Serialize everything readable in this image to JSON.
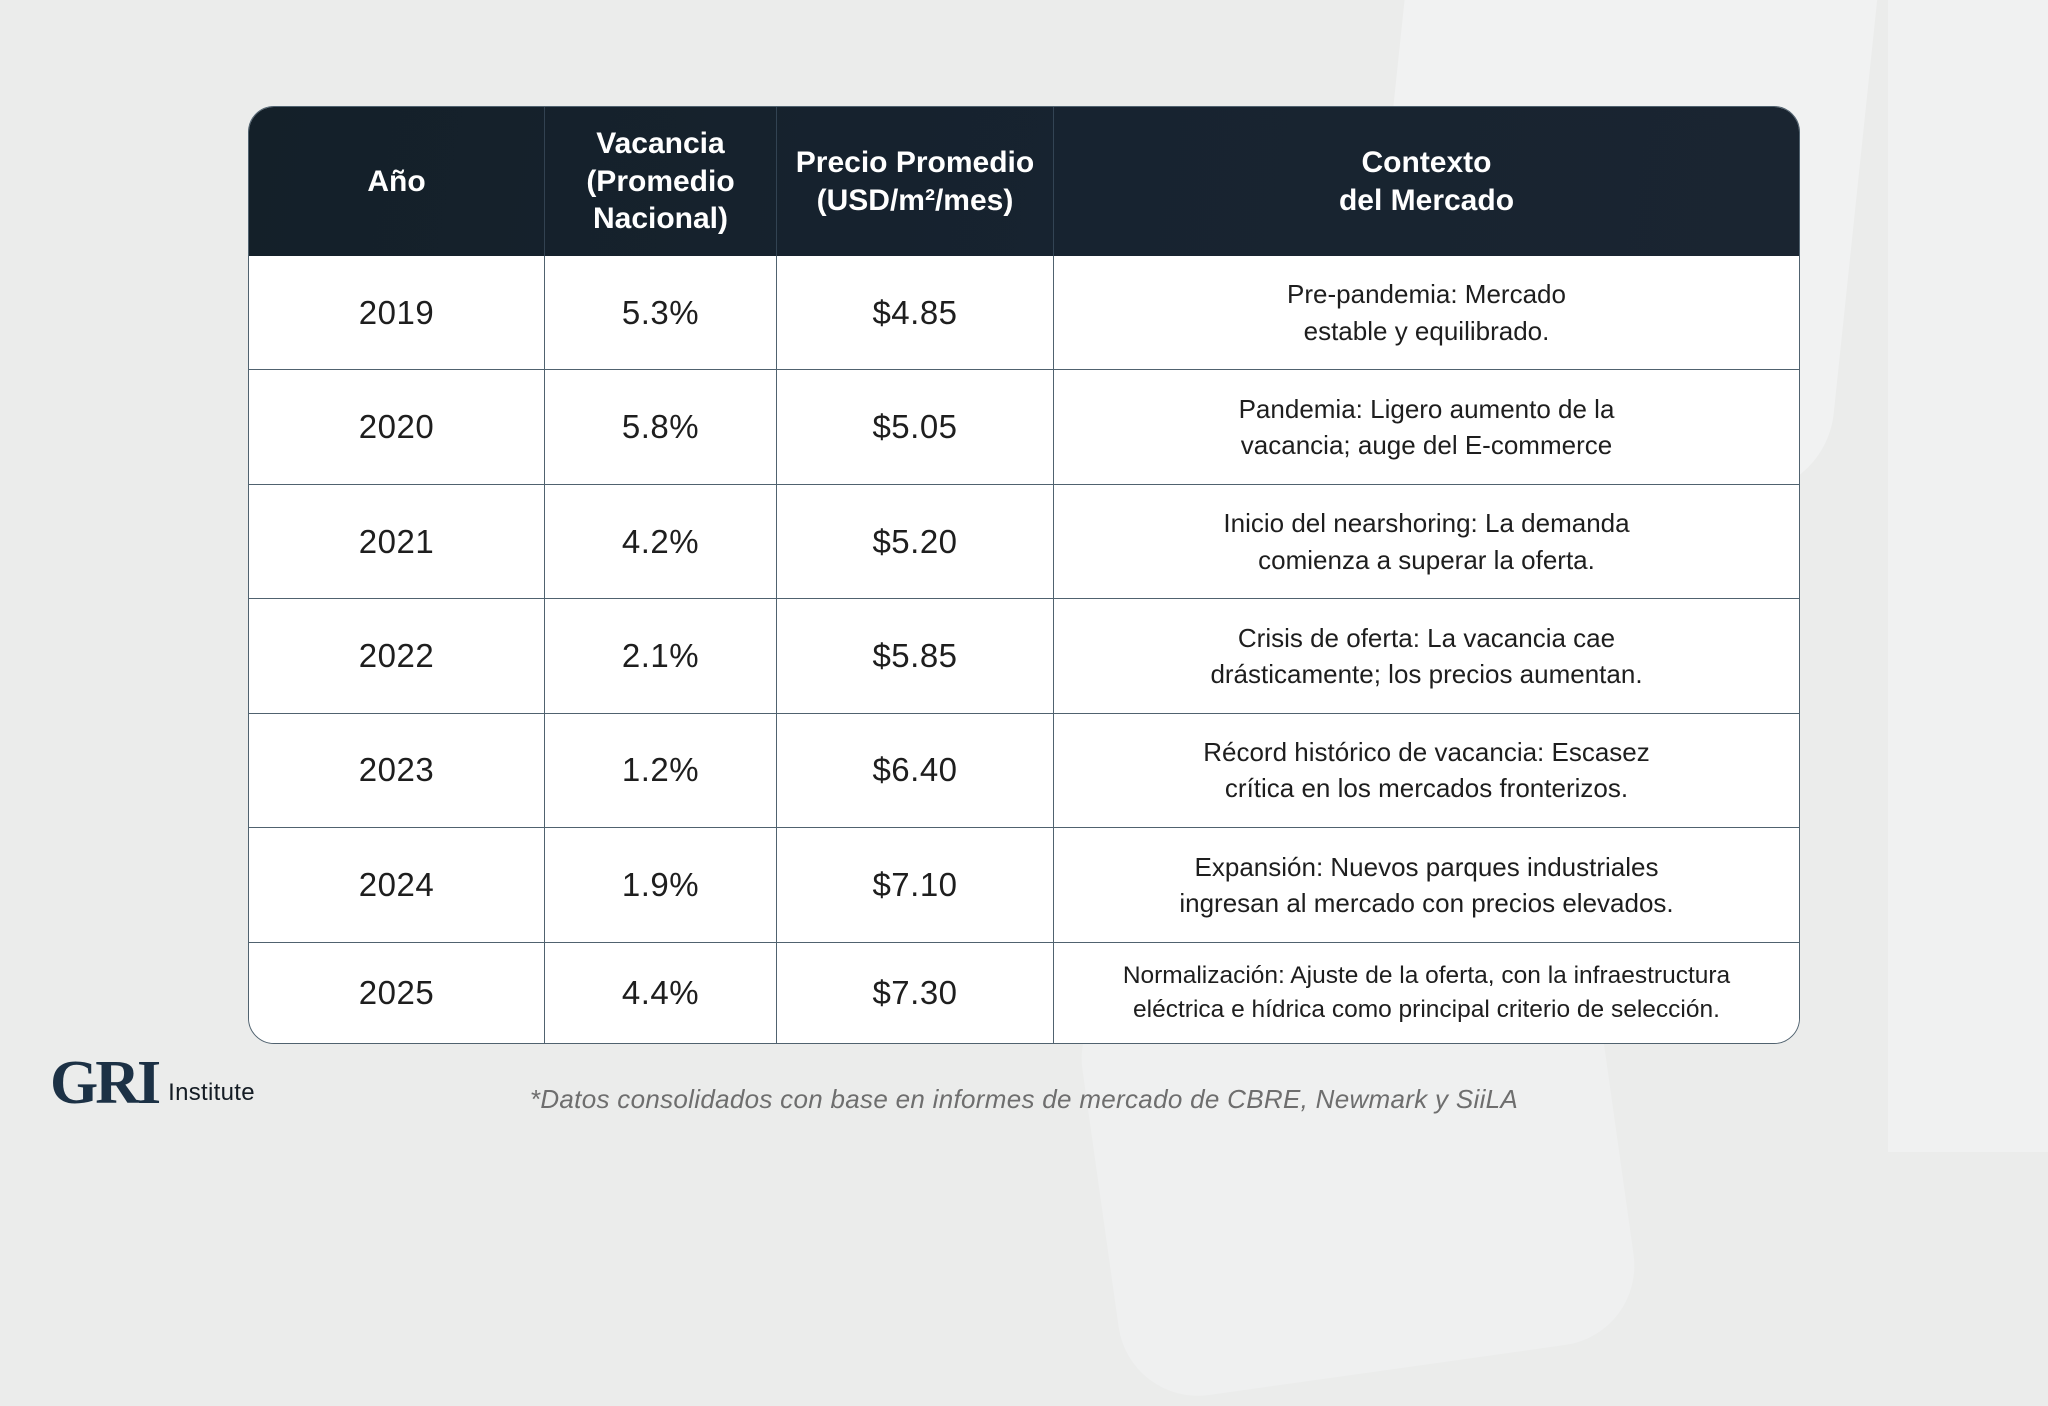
{
  "page": {
    "footnote": "*Datos consolidados con base en informes de mercado de CBRE, Newmark y SiiLA",
    "logo": {
      "name": "GRI",
      "suffix": "Institute"
    },
    "colors": {
      "background": "#ebeceb",
      "header_bg": "#16212d",
      "border": "#50626f",
      "header_text": "#ffffff",
      "body_text": "#1e1e1e",
      "footnote_text": "#6e6e6e",
      "logo_navy": "#1c3145"
    }
  },
  "table": {
    "columns": [
      {
        "label": "Año"
      },
      {
        "label": "Vacancia\n(Promedio\nNacional)"
      },
      {
        "label": "Precio Promedio\n(USD/m²/mes)"
      },
      {
        "label": "Contexto\ndel Mercado"
      }
    ],
    "rows": [
      {
        "year": "2019",
        "vacancy": "5.3%",
        "price": "$4.85",
        "context": "Pre-pandemia: Mercado\nestable y equilibrado."
      },
      {
        "year": "2020",
        "vacancy": "5.8%",
        "price": "$5.05",
        "context": "Pandemia: Ligero aumento de la\nvacancia; auge del E-commerce"
      },
      {
        "year": "2021",
        "vacancy": "4.2%",
        "price": "$5.20",
        "context": "Inicio del nearshoring: La demanda\ncomienza a superar la oferta."
      },
      {
        "year": "2022",
        "vacancy": "2.1%",
        "price": "$5.85",
        "context": "Crisis de oferta: La vacancia cae\ndrásticamente; los precios aumentan."
      },
      {
        "year": "2023",
        "vacancy": "1.2%",
        "price": "$6.40",
        "context": "Récord histórico de vacancia: Escasez\ncrítica en los mercados fronterizos."
      },
      {
        "year": "2024",
        "vacancy": "1.9%",
        "price": "$7.10",
        "context": "Expansión: Nuevos parques industriales\ningresan al mercado con precios elevados."
      },
      {
        "year": "2025",
        "vacancy": "4.4%",
        "price": "$7.30",
        "context": "Normalización: Ajuste de la oferta, con la infraestructura\neléctrica e hídrica como principal criterio de selección."
      }
    ]
  },
  "chart_data": {
    "type": "table",
    "columns": [
      "Año",
      "Vacancia (Promedio Nacional)",
      "Precio Promedio (USD/m²/mes)",
      "Contexto del Mercado"
    ],
    "rows": [
      [
        "2019",
        "5.3%",
        "$4.85",
        "Pre-pandemia: Mercado estable y equilibrado."
      ],
      [
        "2020",
        "5.8%",
        "$5.05",
        "Pandemia: Ligero aumento de la vacancia; auge del E-commerce"
      ],
      [
        "2021",
        "4.2%",
        "$5.20",
        "Inicio del nearshoring: La demanda comienza a superar la oferta."
      ],
      [
        "2022",
        "2.1%",
        "$5.85",
        "Crisis de oferta: La vacancia cae drásticamente; los precios aumentan."
      ],
      [
        "2023",
        "1.2%",
        "$6.40",
        "Récord histórico de vacancia: Escasez crítica en los mercados fronterizos."
      ],
      [
        "2024",
        "1.9%",
        "$7.10",
        "Expansión: Nuevos parques industriales ingresan al mercado con precios elevados."
      ],
      [
        "2025",
        "4.4%",
        "$7.30",
        "Normalización: Ajuste de la oferta, con la infraestructura eléctrica e hídrica como principal criterio de selección."
      ]
    ],
    "source_note": "*Datos consolidados con base en informes de mercado de CBRE, Newmark y SiiLA"
  }
}
